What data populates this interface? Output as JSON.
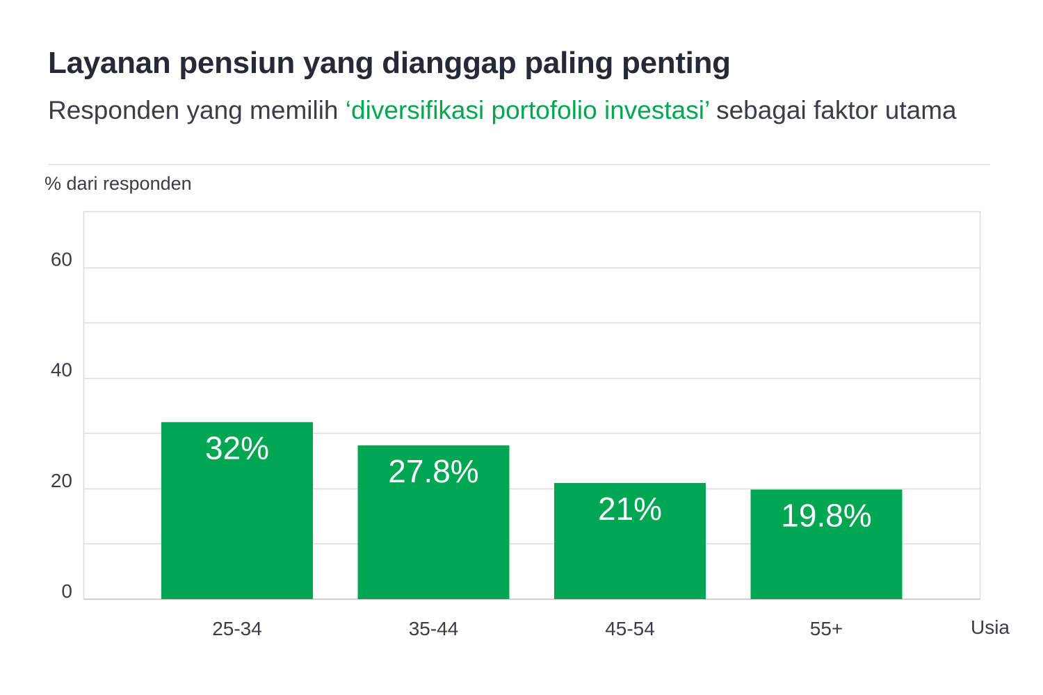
{
  "title": "Layanan pensiun yang dianggap paling penting",
  "subtitle": {
    "before": "Responden yang memilih ",
    "highlight": "‘diversifikasi portofolio investasi’",
    "after": " sebagai faktor utama"
  },
  "unit_label": "% dari responden",
  "colors": {
    "bar": "#00a651",
    "grid": "#d9d9d9",
    "text": "#3a3d47",
    "label": "#ffffff"
  },
  "chart_data": {
    "type": "bar",
    "title": "Layanan pensiun yang dianggap paling penting",
    "xlabel": "Usia",
    "ylabel": "% dari responden",
    "categories": [
      "25-34",
      "35-44",
      "45-54",
      "55+"
    ],
    "values": [
      32,
      27.8,
      21,
      19.8
    ],
    "data_labels": [
      "32%",
      "27.8%",
      "21%",
      "19.8%"
    ],
    "ylim": [
      0,
      70
    ],
    "yticks": [
      0,
      20,
      40,
      60
    ],
    "gridlines": [
      10,
      20,
      30,
      40,
      50,
      60
    ],
    "grid": true
  }
}
